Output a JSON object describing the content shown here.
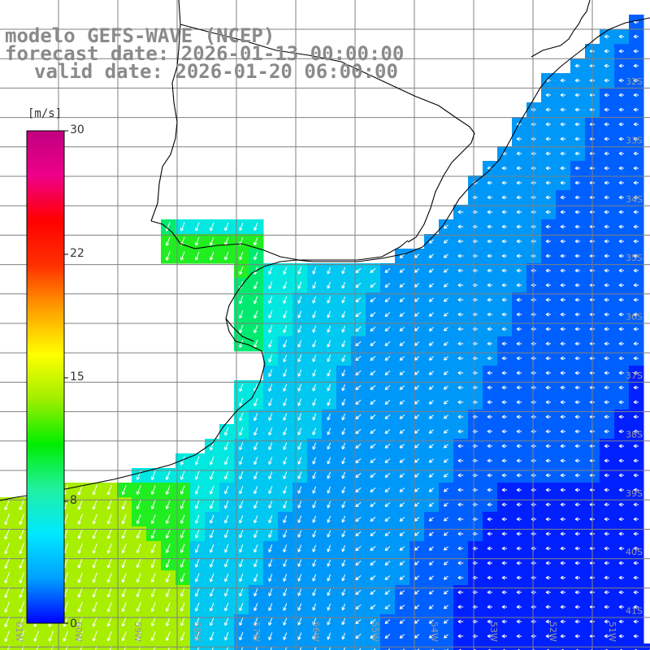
{
  "title": {
    "line1": "modelo GEFS-WAVE (NCEP)",
    "line2": "forecast date: 2026-01-13 00:00:00",
    "line3": "valid date: 2026-01-20 06:00:00"
  },
  "colorbar": {
    "unit": "[m/s]",
    "ticks": [
      "30",
      "22",
      "15",
      "8",
      "0"
    ],
    "min": 0,
    "max": 30,
    "colors": [
      "#0000ff",
      "#00a0ff",
      "#00e8ff",
      "#20f0a0",
      "#00ee00",
      "#a0ee00",
      "#ffff00",
      "#ffa000",
      "#ff3000",
      "#ff0000",
      "#ee0088",
      "#c00080"
    ]
  },
  "grid": {
    "lon_labels": [
      "61W",
      "60W",
      "59W",
      "58W",
      "57W",
      "56W",
      "55W",
      "54W",
      "53W",
      "52W",
      "51W"
    ],
    "lat_labels": [
      "32S",
      "33S",
      "34S",
      "35S",
      "36S",
      "37S",
      "38S",
      "39S",
      "40S",
      "41S"
    ]
  },
  "colors": {
    "land": "#ffffff",
    "coast": "#000000",
    "grid": "#808080",
    "vector": "#ffffff",
    "title": "#8a8a8a"
  }
}
